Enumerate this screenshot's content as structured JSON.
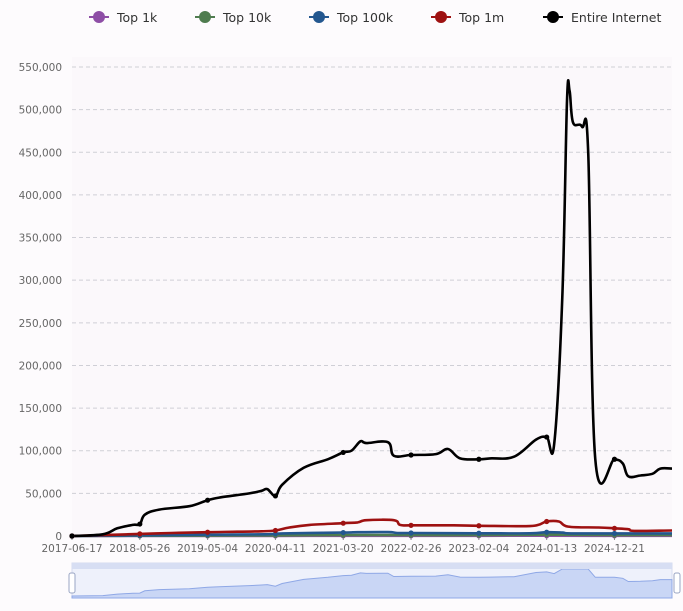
{
  "chart_data": {
    "type": "line",
    "title": "",
    "xlabel": "",
    "ylabel": "",
    "ylim": [
      0,
      550000
    ],
    "y_ticks": [
      0,
      50000,
      100000,
      150000,
      200000,
      250000,
      300000,
      350000,
      400000,
      450000,
      500000,
      550000
    ],
    "y_tick_labels": [
      "0",
      "50,000",
      "100,000",
      "150,000",
      "200,000",
      "250,000",
      "300,000",
      "350,000",
      "400,000",
      "450,000",
      "500,000",
      "550,000"
    ],
    "x_tick_labels": [
      "2017-06-17",
      "2018-05-26",
      "2019-05-04",
      "2020-04-11",
      "2021-03-20",
      "2022-02-26",
      "2023-02-04",
      "2024-01-13",
      "2024-12-21"
    ],
    "x_range": [
      "2017-06-17",
      "2025-10-08"
    ],
    "grid": true,
    "grid_style": "dashed-horizontal",
    "legend_position": "top",
    "data_zoom_slider": true,
    "series": [
      {
        "name": "Top 1k",
        "color": "#8e4ea6",
        "points": [
          [
            "2017-06-17",
            0
          ],
          [
            "2018-05-26",
            80
          ],
          [
            "2019-05-04",
            120
          ],
          [
            "2020-04-11",
            160
          ],
          [
            "2021-03-20",
            200
          ],
          [
            "2022-02-26",
            200
          ],
          [
            "2023-02-04",
            200
          ],
          [
            "2024-01-13",
            300
          ],
          [
            "2024-12-21",
            200
          ],
          [
            "2025-10-08",
            200
          ]
        ]
      },
      {
        "name": "Top 10k",
        "color": "#4f7c4f",
        "points": [
          [
            "2017-06-17",
            0
          ],
          [
            "2018-05-26",
            300
          ],
          [
            "2019-05-04",
            500
          ],
          [
            "2020-04-11",
            700
          ],
          [
            "2021-03-20",
            1000
          ],
          [
            "2022-02-26",
            1000
          ],
          [
            "2023-02-04",
            1000
          ],
          [
            "2024-01-13",
            1500
          ],
          [
            "2024-12-21",
            1000
          ],
          [
            "2025-10-08",
            1000
          ]
        ]
      },
      {
        "name": "Top 100k",
        "color": "#23578f",
        "points": [
          [
            "2017-06-17",
            0
          ],
          [
            "2017-11-20",
            300
          ],
          [
            "2018-05-26",
            800
          ],
          [
            "2019-05-04",
            1500
          ],
          [
            "2020-02-20",
            2000
          ],
          [
            "2020-05-20",
            3000
          ],
          [
            "2021-03-20",
            4000
          ],
          [
            "2021-06-01",
            4500
          ],
          [
            "2021-11-01",
            4600
          ],
          [
            "2021-12-20",
            3500
          ],
          [
            "2022-02-26",
            3500
          ],
          [
            "2023-02-04",
            3200
          ],
          [
            "2023-10-20",
            3200
          ],
          [
            "2024-01-13",
            4500
          ],
          [
            "2024-04-01",
            4000
          ],
          [
            "2024-05-15",
            3000
          ],
          [
            "2024-12-21",
            3000
          ],
          [
            "2025-10-08",
            3000
          ]
        ]
      },
      {
        "name": "Top 1m",
        "color": "#9e1111",
        "points": [
          [
            "2017-06-17",
            0
          ],
          [
            "2017-11-20",
            1000
          ],
          [
            "2018-05-26",
            2500
          ],
          [
            "2018-11-01",
            3500
          ],
          [
            "2019-05-04",
            4500
          ],
          [
            "2019-10-01",
            5000
          ],
          [
            "2020-02-01",
            5500
          ],
          [
            "2020-04-11",
            6500
          ],
          [
            "2020-06-20",
            10000
          ],
          [
            "2020-10-01",
            13000
          ],
          [
            "2021-03-20",
            15000
          ],
          [
            "2021-06-01",
            16000
          ],
          [
            "2021-07-15",
            18500
          ],
          [
            "2021-12-01",
            18500
          ],
          [
            "2022-01-01",
            13000
          ],
          [
            "2022-02-26",
            12500
          ],
          [
            "2022-10-01",
            12500
          ],
          [
            "2023-02-04",
            12000
          ],
          [
            "2023-10-01",
            11500
          ],
          [
            "2023-12-01",
            13000
          ],
          [
            "2024-01-13",
            17000
          ],
          [
            "2024-03-15",
            17000
          ],
          [
            "2024-05-01",
            11000
          ],
          [
            "2024-10-01",
            10000
          ],
          [
            "2024-12-21",
            9000
          ],
          [
            "2025-03-01",
            8000
          ],
          [
            "2025-04-01",
            6000
          ],
          [
            "2025-10-08",
            6500
          ]
        ]
      },
      {
        "name": "Entire Internet",
        "color": "#000000",
        "points": [
          [
            "2017-06-17",
            0
          ],
          [
            "2017-11-20",
            2000
          ],
          [
            "2018-02-01",
            9000
          ],
          [
            "2018-04-20",
            13000
          ],
          [
            "2018-05-26",
            14000
          ],
          [
            "2018-06-20",
            25000
          ],
          [
            "2018-09-01",
            31000
          ],
          [
            "2019-02-01",
            35000
          ],
          [
            "2019-05-04",
            42000
          ],
          [
            "2019-07-01",
            45000
          ],
          [
            "2019-12-01",
            50000
          ],
          [
            "2020-02-01",
            53000
          ],
          [
            "2020-03-01",
            55000
          ],
          [
            "2020-04-11",
            47000
          ],
          [
            "2020-05-15",
            60000
          ],
          [
            "2020-09-01",
            80000
          ],
          [
            "2021-01-01",
            90000
          ],
          [
            "2021-03-20",
            98000
          ],
          [
            "2021-05-01",
            100000
          ],
          [
            "2021-06-15",
            111000
          ],
          [
            "2021-07-15",
            109000
          ],
          [
            "2021-11-01",
            110000
          ],
          [
            "2021-12-01",
            94000
          ],
          [
            "2022-02-26",
            95000
          ],
          [
            "2022-07-01",
            96000
          ],
          [
            "2022-09-01",
            102000
          ],
          [
            "2022-11-01",
            91000
          ],
          [
            "2023-02-04",
            90000
          ],
          [
            "2023-04-01",
            91000
          ],
          [
            "2023-08-01",
            93000
          ],
          [
            "2023-11-20",
            113000
          ],
          [
            "2024-01-13",
            116000
          ],
          [
            "2024-02-20",
            108000
          ],
          [
            "2024-04-01",
            280000
          ],
          [
            "2024-04-25",
            510000
          ],
          [
            "2024-05-08",
            522000
          ],
          [
            "2024-05-25",
            485000
          ],
          [
            "2024-07-10",
            480000
          ],
          [
            "2024-08-10",
            450000
          ],
          [
            "2024-09-15",
            90000
          ],
          [
            "2024-12-21",
            90000
          ],
          [
            "2025-02-01",
            85000
          ],
          [
            "2025-03-01",
            70000
          ],
          [
            "2025-05-01",
            71000
          ],
          [
            "2025-07-01",
            73000
          ],
          [
            "2025-08-10",
            79000
          ],
          [
            "2025-10-08",
            79000
          ]
        ]
      }
    ]
  },
  "zoom_slider": {
    "start": "2017-06-17",
    "end": "2025-10-08",
    "fill_color": "#c9d6f5",
    "line_color": "#8fa8e6"
  }
}
